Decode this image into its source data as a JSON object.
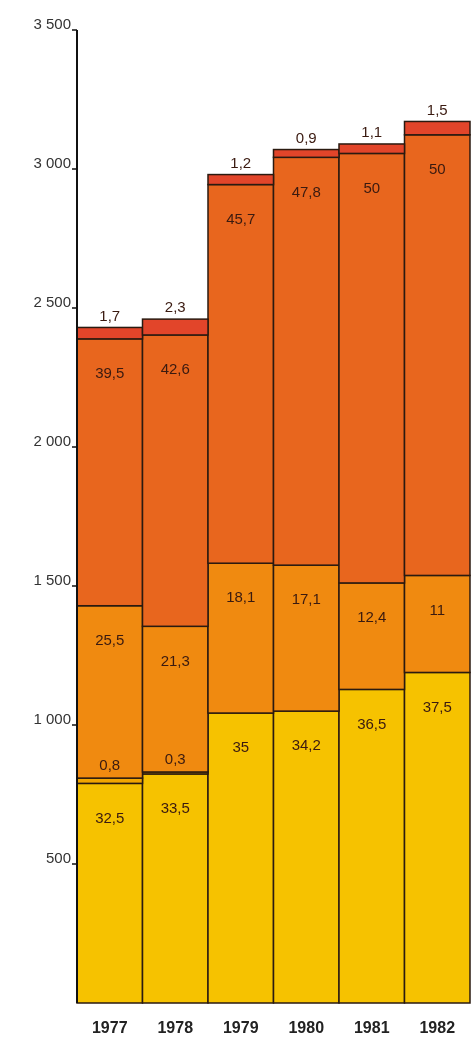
{
  "chart_data": {
    "type": "bar",
    "stacked": true,
    "categories": [
      "1977",
      "1978",
      "1979",
      "1980",
      "1981",
      "1982"
    ],
    "series": [
      {
        "color": "#f6c200",
        "values": [
          790,
          824,
          1043,
          1050,
          1128,
          1189
        ]
      },
      {
        "color": "#f2a600",
        "values": [
          19,
          7,
          null,
          null,
          null,
          null
        ]
      },
      {
        "color": "#f08a10",
        "values": [
          620,
          524,
          539,
          525,
          383,
          349
        ]
      },
      {
        "color": "#e8661e",
        "values": [
          960,
          1048,
          1362,
          1467,
          1545,
          1585
        ]
      },
      {
        "color": "#e2452a",
        "values": [
          41,
          57,
          36,
          28,
          34,
          48
        ]
      }
    ],
    "annotations": [
      {
        "text": "32,5",
        "x": "1977",
        "y": 790
      },
      {
        "text": "33,5",
        "x": "1978",
        "y": 824
      },
      {
        "text": "35",
        "x": "1979",
        "y": 1043
      },
      {
        "text": "34,2",
        "x": "1980",
        "y": 1050
      },
      {
        "text": "36,5",
        "x": "1981",
        "y": 1128
      },
      {
        "text": "37,5",
        "x": "1982",
        "y": 1189
      },
      {
        "text": "0,8",
        "x": "1977",
        "y": 809
      },
      {
        "text": "0,3",
        "x": "1978",
        "y": 831
      },
      {
        "text": "25,5",
        "x": "1977",
        "y": 1429
      },
      {
        "text": "21,3",
        "x": "1978",
        "y": 1355
      },
      {
        "text": "18,1",
        "x": "1979",
        "y": 1582
      },
      {
        "text": "17,1",
        "x": "1980",
        "y": 1575
      },
      {
        "text": "12,4",
        "x": "1981",
        "y": 1511
      },
      {
        "text": "11",
        "x": "1982",
        "y": 1538
      },
      {
        "text": "39,5",
        "x": "1977",
        "y": 2389
      },
      {
        "text": "42,6",
        "x": "1978",
        "y": 2403
      },
      {
        "text": "45,7",
        "x": "1979",
        "y": 2944
      },
      {
        "text": "47,8",
        "x": "1980",
        "y": 3042
      },
      {
        "text": "50",
        "x": "1981",
        "y": 3056
      },
      {
        "text": "50",
        "x": "1982",
        "y": 3123
      },
      {
        "text": "1,7",
        "x": "1977",
        "y": 2430
      },
      {
        "text": "2,3",
        "x": "1978",
        "y": 2460
      },
      {
        "text": "1,2",
        "x": "1979",
        "y": 2980
      },
      {
        "text": "0,9",
        "x": "1980",
        "y": 3070
      },
      {
        "text": "1,1",
        "x": "1981",
        "y": 3090
      },
      {
        "text": "1,5",
        "x": "1982",
        "y": 3171
      }
    ],
    "ylim": [
      0,
      3500
    ],
    "yticks": [
      {
        "value": 500,
        "label": "500"
      },
      {
        "value": 1000,
        "label": "1 000"
      },
      {
        "value": 1500,
        "label": "1 500"
      },
      {
        "value": 2000,
        "label": "2 000"
      },
      {
        "value": 2500,
        "label": "2 500"
      },
      {
        "value": 3000,
        "label": "3 000"
      },
      {
        "value": 3500,
        "label": "3 500"
      }
    ],
    "grid": false
  }
}
